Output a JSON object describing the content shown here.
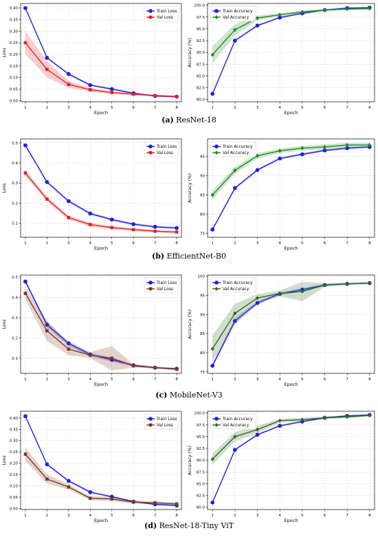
{
  "chart_data": [
    {
      "type": "line",
      "panel": "a",
      "caption_letter": "(a)",
      "caption_text": "ResNet-18",
      "loss": {
        "x": [
          1,
          2,
          3,
          4,
          5,
          6,
          7,
          8
        ],
        "xlabel": "Epoch",
        "ylabel": "Loss",
        "ylim": [
          -0.005,
          0.42
        ],
        "yticks": [
          "0.00",
          "0.05",
          "0.10",
          "0.15",
          "0.20",
          "0.25",
          "0.30",
          "0.35",
          "0.40"
        ],
        "legend_position": "top-right",
        "series": [
          {
            "name": "Train Loss",
            "color": "#1f1fe6",
            "marker": "circle",
            "values": [
              0.4,
              0.185,
              0.115,
              0.067,
              0.05,
              0.032,
              0.02,
              0.017
            ],
            "band": 0.004
          },
          {
            "name": "Val Loss",
            "color": "#e61f1f",
            "marker": "square",
            "values": [
              0.25,
              0.135,
              0.07,
              0.047,
              0.035,
              0.028,
              0.022,
              0.018
            ],
            "band": [
              0.05,
              0.035,
              0.015,
              0.008,
              0.006,
              0.005,
              0.004,
              0.003
            ]
          }
        ]
      },
      "acc": {
        "x": [
          1,
          2,
          3,
          4,
          5,
          6,
          7,
          8
        ],
        "xlabel": "Epoch",
        "ylabel": "Accuracy (%)",
        "ylim": [
          79.5,
          100.4
        ],
        "yticks": [
          "80.0",
          "82.5",
          "85.0",
          "87.5",
          "90.0",
          "92.5",
          "95.0",
          "97.5",
          "100.0"
        ],
        "legend_position": "top-left",
        "series": [
          {
            "name": "Train Accuracy",
            "color": "#1f1fe6",
            "marker": "circle",
            "values": [
              81.2,
              92.5,
              95.7,
              97.4,
              98.3,
              99.0,
              99.4,
              99.5
            ],
            "band": 0.2
          },
          {
            "name": "Val Accuracy",
            "color": "#1f8a1f",
            "marker": "diamond",
            "values": [
              89.5,
              94.8,
              97.3,
              98.0,
              98.6,
              99.0,
              99.2,
              99.3
            ],
            "band": [
              1.8,
              1.2,
              0.5,
              0.3,
              0.3,
              0.2,
              0.2,
              0.2
            ]
          }
        ]
      }
    },
    {
      "type": "line",
      "panel": "b",
      "caption_letter": "(b)",
      "caption_text": "EfficientNet-B0",
      "loss": {
        "x": [
          1,
          2,
          3,
          4,
          5,
          6,
          7,
          8
        ],
        "xlabel": "Epoch",
        "ylabel": "Loss",
        "ylim": [
          0.03,
          0.52
        ],
        "yticks": [
          "0.1",
          "0.2",
          "0.3",
          "0.4",
          "0.5"
        ],
        "legend_position": "top-right",
        "series": [
          {
            "name": "Train Loss",
            "color": "#1f1fe6",
            "marker": "circle",
            "values": [
              0.488,
              0.305,
              0.21,
              0.148,
              0.118,
              0.095,
              0.082,
              0.076
            ],
            "band": 0.006
          },
          {
            "name": "Val Loss",
            "color": "#e61f1f",
            "marker": "square",
            "values": [
              0.35,
              0.22,
              0.128,
              0.093,
              0.078,
              0.068,
              0.06,
              0.056
            ],
            "band": [
              0.015,
              0.012,
              0.01,
              0.01,
              0.008,
              0.008,
              0.007,
              0.007
            ]
          }
        ]
      },
      "acc": {
        "x": [
          1,
          2,
          3,
          4,
          5,
          6,
          7,
          8
        ],
        "xlabel": "Epoch",
        "ylabel": "Accuracy (%)",
        "ylim": [
          74.0,
          99.6
        ],
        "yticks": [
          "75",
          "80",
          "85",
          "90",
          "95"
        ],
        "legend_position": "top-left",
        "series": [
          {
            "name": "Train Accuracy",
            "color": "#1f1fe6",
            "marker": "circle",
            "values": [
              76.0,
              86.8,
              91.5,
              94.5,
              95.6,
              96.6,
              97.2,
              97.5
            ],
            "band": 0.3
          },
          {
            "name": "Val Accuracy",
            "color": "#1f8a1f",
            "marker": "diamond",
            "values": [
              85.0,
              91.4,
              95.2,
              96.5,
              97.2,
              97.5,
              98.0,
              98.0
            ],
            "band": [
              1.2,
              0.9,
              0.7,
              0.6,
              0.6,
              0.7,
              0.6,
              0.6
            ]
          }
        ]
      }
    },
    {
      "type": "line",
      "panel": "c",
      "caption_letter": "(c)",
      "caption_text": "MobileNet-V3",
      "loss": {
        "x": [
          1,
          2,
          3,
          4,
          5,
          6,
          7,
          8
        ],
        "xlabel": "Epoch",
        "ylabel": "Loss",
        "ylim": [
          0.025,
          0.51
        ],
        "yticks": [
          "0.1",
          "0.2",
          "0.3",
          "0.4",
          "0.5"
        ],
        "legend_position": "top-right",
        "series": [
          {
            "name": "Train Loss",
            "color": "#1f1fe6",
            "marker": "circle",
            "values": [
              0.478,
              0.265,
              0.173,
              0.118,
              0.092,
              0.065,
              0.053,
              0.048
            ],
            "band": [
              0.01,
              0.012,
              0.012,
              0.01,
              0.01,
              0.006,
              0.005,
              0.005
            ]
          },
          {
            "name": "Val Loss",
            "color": "#7a3b1a",
            "marker": "square",
            "values": [
              0.42,
              0.235,
              0.145,
              0.115,
              0.1,
              0.062,
              0.054,
              0.045
            ],
            "band": [
              0.03,
              0.05,
              0.03,
              0.015,
              0.06,
              0.008,
              0.005,
              0.005
            ]
          }
        ]
      },
      "acc": {
        "x": [
          1,
          2,
          3,
          4,
          5,
          6,
          7,
          8
        ],
        "xlabel": "Epoch",
        "ylabel": "Accuracy (%)",
        "ylim": [
          74.6,
          100.3
        ],
        "yticks": [
          "75",
          "80",
          "85",
          "90",
          "95",
          "100"
        ],
        "legend_position": "top-left",
        "series": [
          {
            "name": "Train Accuracy",
            "color": "#1f1fe6",
            "marker": "circle",
            "values": [
              76.6,
              88.3,
              93.0,
              95.4,
              96.5,
              97.7,
              98.0,
              98.2
            ],
            "band": [
              0.5,
              0.8,
              0.5,
              0.4,
              0.4,
              0.3,
              0.2,
              0.2
            ]
          },
          {
            "name": "Val Accuracy",
            "color": "#2e6b1f",
            "marker": "diamond",
            "values": [
              81.0,
              90.3,
              94.3,
              95.5,
              96.0,
              97.7,
              98.0,
              98.2
            ],
            "band": [
              3.5,
              2.5,
              1.0,
              0.8,
              2.5,
              0.5,
              0.3,
              0.3
            ]
          }
        ]
      }
    },
    {
      "type": "line",
      "panel": "d",
      "caption_letter": "(d)",
      "caption_text": "ResNet-18-Tiny ViT",
      "loss": {
        "x": [
          1,
          2,
          3,
          4,
          5,
          6,
          7,
          8
        ],
        "xlabel": "Epoch",
        "ylabel": "Loss",
        "ylim": [
          -0.005,
          0.43
        ],
        "yticks": [
          "0.00",
          "0.05",
          "0.10",
          "0.15",
          "0.20",
          "0.25",
          "0.30",
          "0.35",
          "0.40"
        ],
        "legend_position": "top-right",
        "series": [
          {
            "name": "Train Loss",
            "color": "#1f1fe6",
            "marker": "circle",
            "values": [
              0.408,
              0.195,
              0.122,
              0.072,
              0.052,
              0.03,
              0.018,
              0.013
            ],
            "band": 0.004
          },
          {
            "name": "Val Loss",
            "color": "#7a3b1a",
            "marker": "square",
            "values": [
              0.24,
              0.13,
              0.095,
              0.045,
              0.042,
              0.028,
              0.025,
              0.02
            ],
            "band": [
              0.03,
              0.02,
              0.012,
              0.008,
              0.01,
              0.008,
              0.006,
              0.006
            ]
          }
        ]
      },
      "acc": {
        "x": [
          1,
          2,
          3,
          4,
          5,
          6,
          7,
          8
        ],
        "xlabel": "Epoch",
        "ylabel": "Accuracy (%)",
        "ylim": [
          79.5,
          100.4
        ],
        "yticks": [
          "80.0",
          "82.5",
          "85.0",
          "87.5",
          "90.0",
          "92.5",
          "95.0",
          "97.5",
          "100.0"
        ],
        "legend_position": "top-left",
        "series": [
          {
            "name": "Train Accuracy",
            "color": "#1f1fe6",
            "marker": "circle",
            "values": [
              81.0,
              92.2,
              95.4,
              97.3,
              98.2,
              99.0,
              99.4,
              99.6
            ],
            "band": 0.2
          },
          {
            "name": "Val Accuracy",
            "color": "#2e6b1f",
            "marker": "diamond",
            "values": [
              90.2,
              95.0,
              96.5,
              98.4,
              98.6,
              99.0,
              99.2,
              99.5
            ],
            "band": [
              1.2,
              1.0,
              0.8,
              0.4,
              0.4,
              0.3,
              0.3,
              0.2
            ]
          }
        ]
      }
    }
  ]
}
